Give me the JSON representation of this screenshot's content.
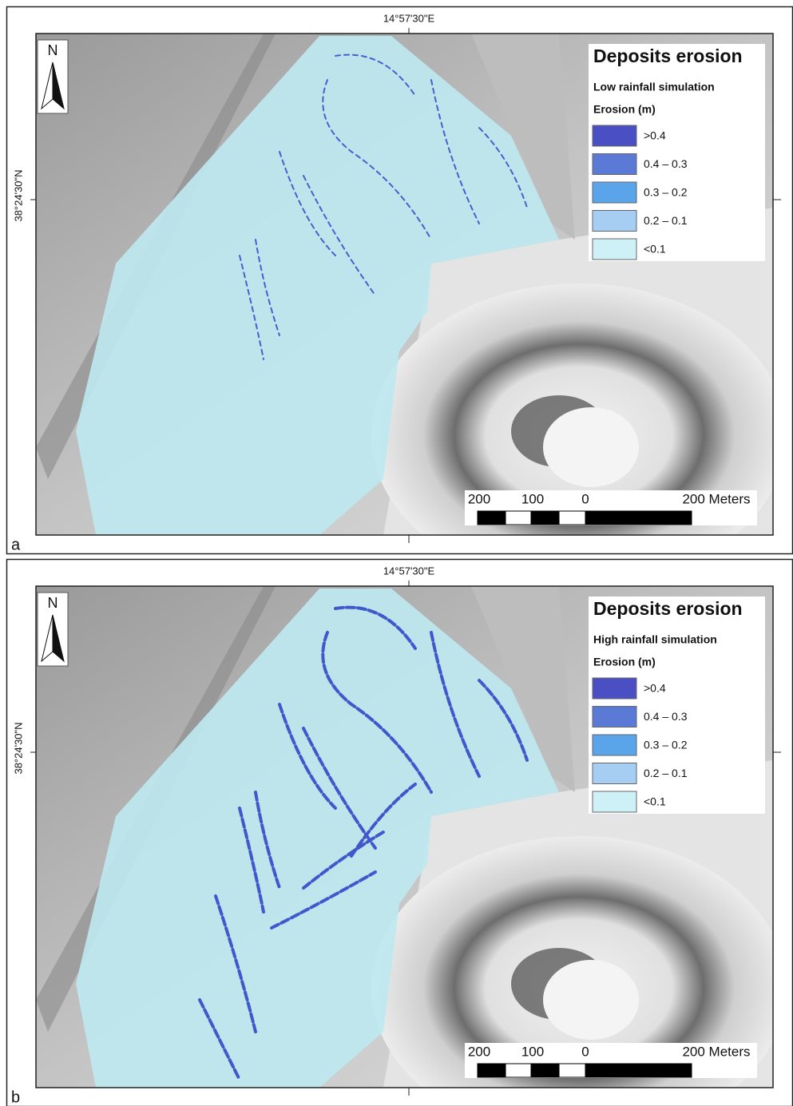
{
  "panels": [
    {
      "label": "a",
      "top_coordinate": "14°57'30\"E",
      "left_coordinate": "38°24'30\"N",
      "north": "N",
      "legend": {
        "title": "Deposits erosion",
        "subtitle": "Low rainfall simulation",
        "heading": "Erosion (m)",
        "classes": [
          {
            "label": ">0.4",
            "color": "#4a4fc4"
          },
          {
            "label": "0.4 – 0.3",
            "color": "#5b7ad6"
          },
          {
            "label": "0.3 – 0.2",
            "color": "#5aa4ea"
          },
          {
            "label": "0.2 – 0.1",
            "color": "#a6cdf2"
          },
          {
            "label": "<0.1",
            "color": "#cdf1f7"
          }
        ]
      },
      "scale_bar": [
        "200",
        "100",
        "0",
        "200 Meters"
      ]
    },
    {
      "label": "b",
      "top_coordinate": "14°57'30\"E",
      "left_coordinate": "38°24'30\"N",
      "north": "N",
      "legend": {
        "title": "Deposits erosion",
        "subtitle": "High rainfall simulation",
        "heading": "Erosion (m)",
        "classes": [
          {
            "label": ">0.4",
            "color": "#4a4fc4"
          },
          {
            "label": "0.4 – 0.3",
            "color": "#5b7ad6"
          },
          {
            "label": "0.3 – 0.2",
            "color": "#5aa4ea"
          },
          {
            "label": "0.2 – 0.1",
            "color": "#a6cdf2"
          },
          {
            "label": "<0.1",
            "color": "#cdf1f7"
          }
        ]
      },
      "scale_bar": [
        "200",
        "100",
        "0",
        "200 Meters"
      ]
    }
  ]
}
